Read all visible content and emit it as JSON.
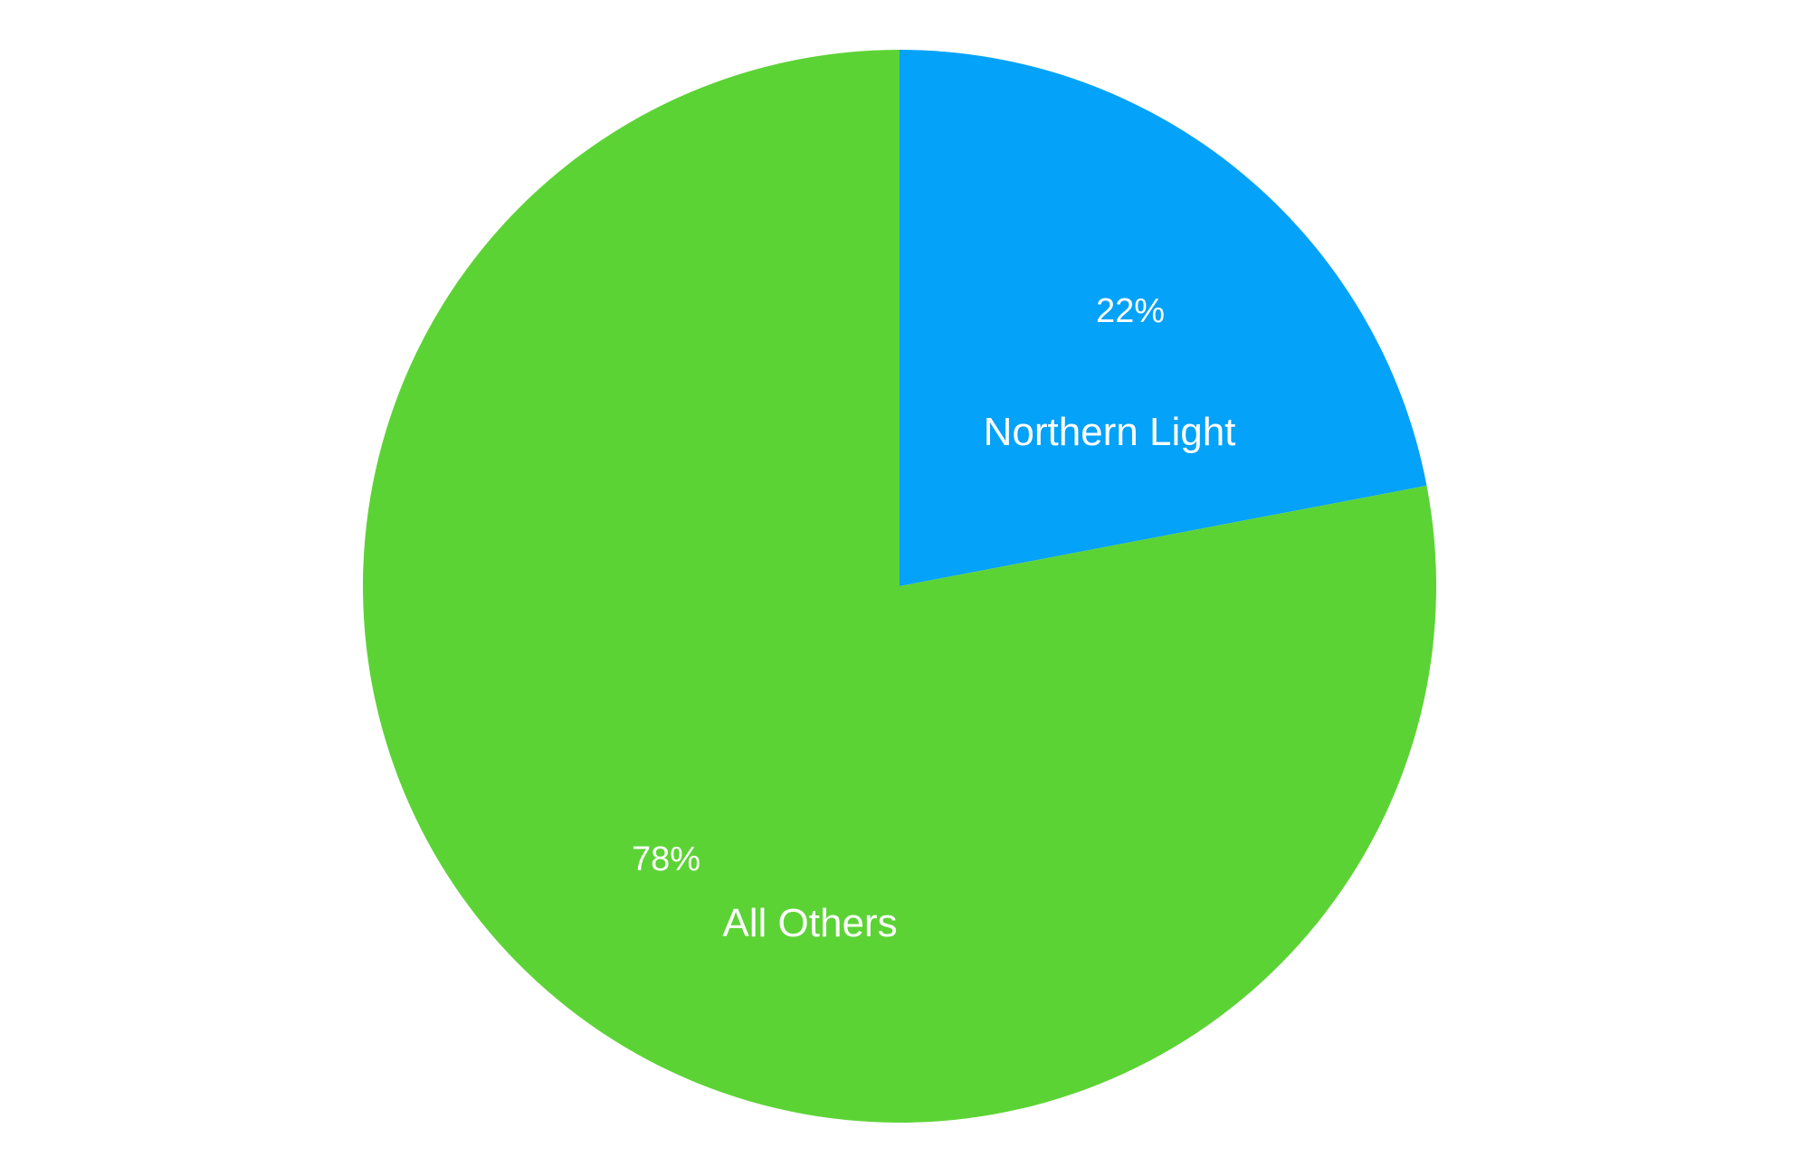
{
  "chart_data": {
    "type": "pie",
    "title": "",
    "legend": "none",
    "background_color": "#FFFFFF",
    "label_color": "#FFFFFF",
    "start_angle_deg": 0,
    "direction": "clockwise",
    "categories": [
      "Northern Light",
      "All Others"
    ],
    "values": [
      22,
      78
    ],
    "slices": [
      {
        "label": "Northern Light",
        "value": 22,
        "pct_label": "22%",
        "color": "#04A2F9"
      },
      {
        "label": "All Others",
        "value": 78,
        "pct_label": "78%",
        "color": "#5CD335"
      }
    ]
  }
}
